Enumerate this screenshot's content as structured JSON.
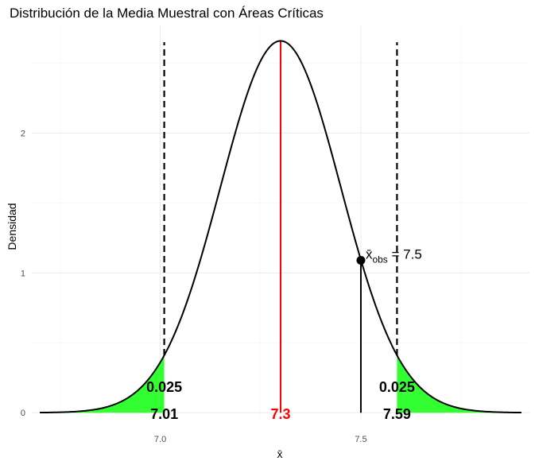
{
  "chart_data": {
    "type": "line",
    "title": "Distribución de la Media Muestral con Áreas Críticas",
    "xlabel": "x̄",
    "ylabel": "Densidad",
    "xlim": [
      6.68,
      7.92
    ],
    "ylim": [
      -0.05,
      2.77
    ],
    "x_ticks": [
      7.0,
      7.5
    ],
    "x_tick_labels": [
      "7.0",
      "7.5"
    ],
    "y_ticks": [
      0,
      1,
      2
    ],
    "y_tick_labels": [
      "0",
      "1",
      "2"
    ],
    "grid": true,
    "density": {
      "distribution": "normal",
      "mean": 7.3,
      "sd": 0.15,
      "x_range": [
        6.7,
        7.9
      ],
      "color": "#000000"
    },
    "mean_line": {
      "x": 7.3,
      "label": "7.3",
      "color": "#ff0000"
    },
    "critical_values": [
      {
        "x": 7.01,
        "label": "7.01",
        "tail_area": "0.025",
        "line_top": 2.65
      },
      {
        "x": 7.59,
        "label": "7.59",
        "tail_area": "0.025",
        "line_top": 2.65
      }
    ],
    "critical_fill_color": "#33ff33",
    "observed": {
      "x": 7.5,
      "y": 1.09,
      "label_main": "x̄",
      "label_sub": "obs",
      "label_rest": " = 7.5"
    }
  }
}
